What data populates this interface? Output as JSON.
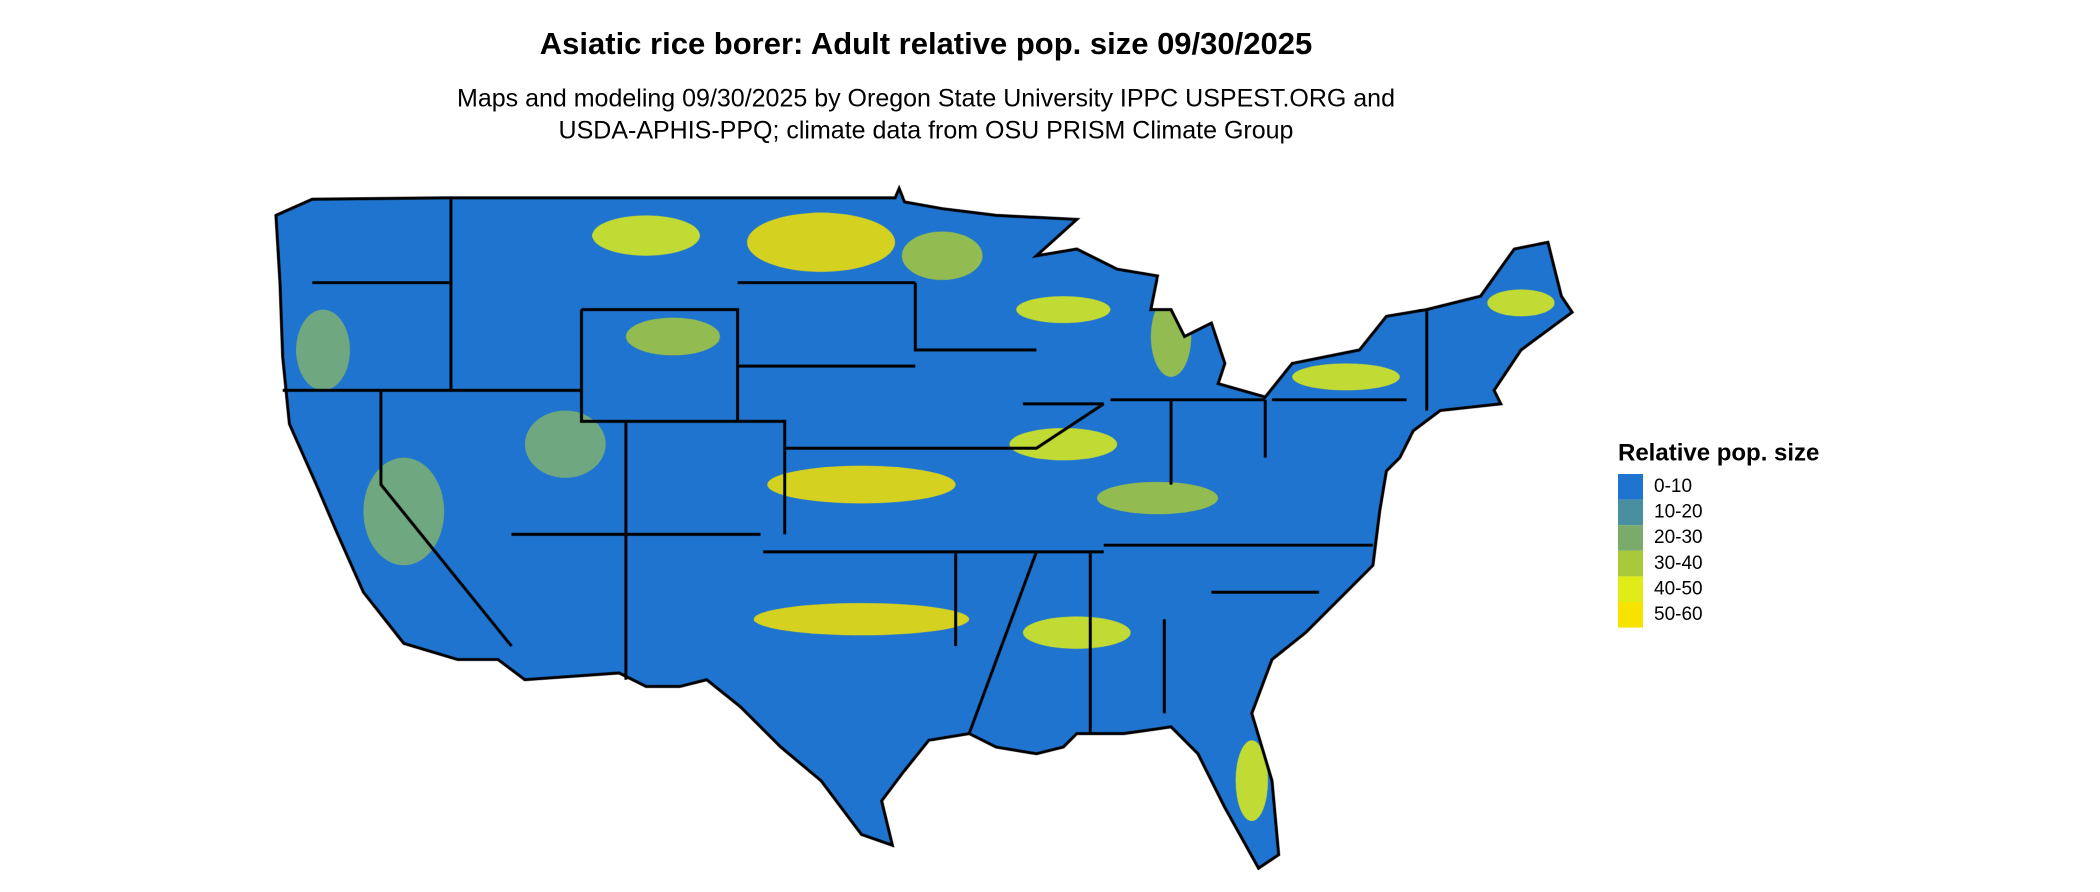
{
  "title": "Asiatic rice borer: Adult relative pop. size 09/30/2025",
  "subtitle": [
    "Maps and modeling 09/30/2025 by Oregon State University IPPC USPEST.ORG and",
    "USDA-APHIS-PPQ; climate data from OSU PRISM Climate Group"
  ],
  "legend": {
    "title": "Relative pop. size",
    "items": [
      {
        "label": "0-10",
        "color": "#1f74cf"
      },
      {
        "label": "10-20",
        "color": "#4a8fa0"
      },
      {
        "label": "20-30",
        "color": "#7aab6a"
      },
      {
        "label": "30-40",
        "color": "#a8c93a"
      },
      {
        "label": "40-50",
        "color": "#dfec18"
      },
      {
        "label": "50-60",
        "color": "#f7e200"
      }
    ]
  }
}
